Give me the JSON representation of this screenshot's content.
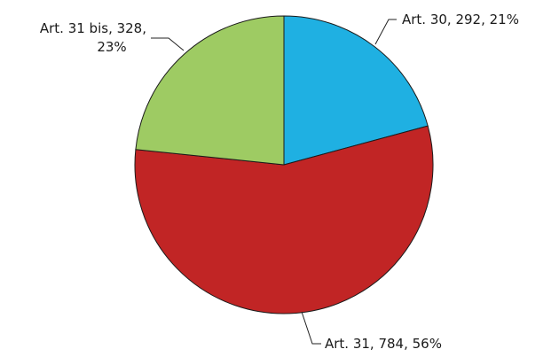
{
  "chart_data": {
    "type": "pie",
    "start_angle_deg": 0,
    "direction": "clockwise",
    "slices": [
      {
        "name": "Art. 30",
        "value": 292,
        "label": "Art. 30, 292, 21%",
        "color": "#1fb0e2"
      },
      {
        "name": "Art. 31",
        "value": 784,
        "label": "Art. 31, 784, 56%",
        "color": "#c12525"
      },
      {
        "name": "Art. 31 bis",
        "value": 328,
        "label_lines": [
          "Art. 31 bis, 328,",
          "23%"
        ],
        "color": "#9ecb63"
      }
    ]
  }
}
